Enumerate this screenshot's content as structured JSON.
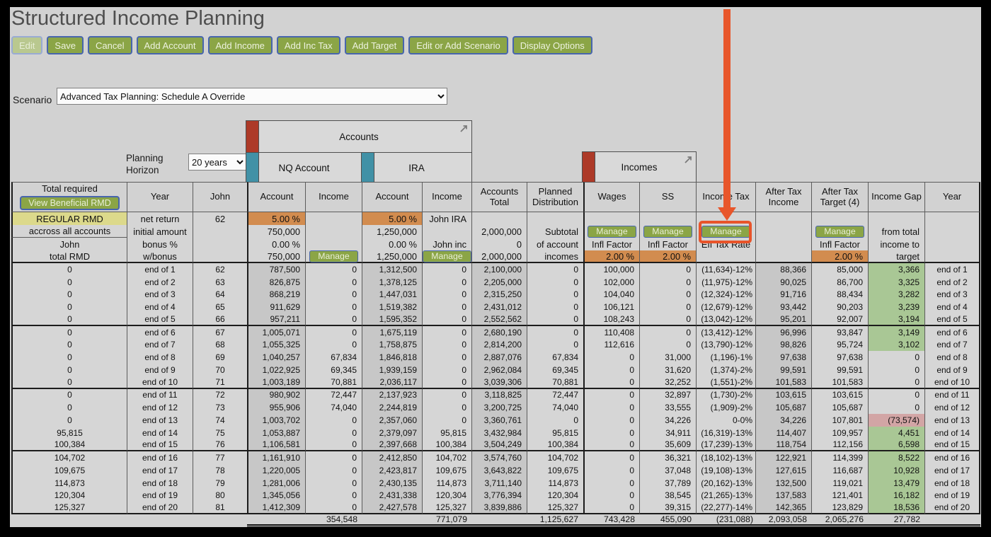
{
  "title": "Structured Income Planning",
  "toolbar": {
    "buttons": [
      "Edit",
      "Save",
      "Cancel",
      "Add Account",
      "Add Income",
      "Add Inc Tax",
      "Add Target",
      "Edit or Add Scenario",
      "Display Options"
    ]
  },
  "scenario": {
    "label": "Scenario",
    "value": "Advanced Tax Planning: Schedule A Override"
  },
  "planning_horizon": {
    "label": "Planning Horizon",
    "value": "20 years"
  },
  "panels": {
    "accounts": {
      "title": "Accounts",
      "subaccounts": [
        "NQ Account",
        "IRA"
      ]
    },
    "incomes": {
      "title": "Incomes"
    }
  },
  "table": {
    "corner": {
      "title": "Total required",
      "button_label": "View Beneficial RMD"
    },
    "columns": [
      "Total required",
      "Year",
      "John",
      "Account",
      "Income",
      "Account",
      "Income",
      "Accounts Total",
      "Planned Distribution",
      "Wages",
      "SS",
      "Income Tax",
      "After Tax Income",
      "After Tax Target (4)",
      "Income Gap",
      "Year"
    ],
    "subheader_rows": [
      [
        "REGULAR RMD",
        "net return",
        "62",
        "5.00 %",
        "",
        "5.00 %",
        "John IRA",
        "",
        "",
        "",
        "",
        "",
        "",
        "",
        "",
        ""
      ],
      [
        "accross all accounts",
        "initial amount",
        "",
        "750,000",
        "",
        "1,250,000",
        "",
        "2,000,000",
        "Subtotal",
        "Manage",
        "Manage",
        "Manage",
        "",
        "Manage",
        "from total",
        ""
      ],
      [
        "John",
        "bonus %",
        "",
        "0.00 %",
        "",
        "0.00 %",
        "John inc",
        "0",
        "of account",
        "Infl Factor",
        "Infl Factor",
        "Eff Tax Rate",
        "",
        "Infl Factor",
        "income to",
        ""
      ],
      [
        "total RMD",
        "w/bonus",
        "",
        "750,000",
        "Manage",
        "1,250,000",
        "Manage",
        "2,000,000",
        "incomes",
        "2.00 %",
        "2.00 %",
        "",
        "",
        "2.00 %",
        "target",
        ""
      ]
    ],
    "rows": [
      [
        "0",
        "end of 1",
        "62",
        "787,500",
        "0",
        "1,312,500",
        "0",
        "2,100,000",
        "0",
        "100,000",
        "0",
        "(11,634)-12%",
        "88,366",
        "85,000",
        "3,366",
        "end of 1"
      ],
      [
        "0",
        "end of 2",
        "63",
        "826,875",
        "0",
        "1,378,125",
        "0",
        "2,205,000",
        "0",
        "102,000",
        "0",
        "(11,975)-12%",
        "90,025",
        "86,700",
        "3,325",
        "end of 2"
      ],
      [
        "0",
        "end of 3",
        "64",
        "868,219",
        "0",
        "1,447,031",
        "0",
        "2,315,250",
        "0",
        "104,040",
        "0",
        "(12,324)-12%",
        "91,716",
        "88,434",
        "3,282",
        "end of 3"
      ],
      [
        "0",
        "end of 4",
        "65",
        "911,629",
        "0",
        "1,519,382",
        "0",
        "2,431,012",
        "0",
        "106,121",
        "0",
        "(12,679)-12%",
        "93,442",
        "90,203",
        "3,239",
        "end of 4"
      ],
      [
        "0",
        "end of 5",
        "66",
        "957,211",
        "0",
        "1,595,352",
        "0",
        "2,552,562",
        "0",
        "108,243",
        "0",
        "(13,042)-12%",
        "95,201",
        "92,007",
        "3,194",
        "end of 5"
      ],
      [
        "0",
        "end of 6",
        "67",
        "1,005,071",
        "0",
        "1,675,119",
        "0",
        "2,680,190",
        "0",
        "110,408",
        "0",
        "(13,412)-12%",
        "96,996",
        "93,847",
        "3,149",
        "end of 6"
      ],
      [
        "0",
        "end of 7",
        "68",
        "1,055,325",
        "0",
        "1,758,875",
        "0",
        "2,814,200",
        "0",
        "112,616",
        "0",
        "(13,790)-12%",
        "98,826",
        "95,724",
        "3,102",
        "end of 7"
      ],
      [
        "0",
        "end of 8",
        "69",
        "1,040,257",
        "67,834",
        "1,846,818",
        "0",
        "2,887,076",
        "67,834",
        "0",
        "31,000",
        "(1,196)-1%",
        "97,638",
        "97,638",
        "0",
        "end of 8"
      ],
      [
        "0",
        "end of 9",
        "70",
        "1,022,925",
        "69,345",
        "1,939,159",
        "0",
        "2,962,084",
        "69,345",
        "0",
        "31,620",
        "(1,374)-2%",
        "99,591",
        "99,591",
        "0",
        "end of 9"
      ],
      [
        "0",
        "end of 10",
        "71",
        "1,003,189",
        "70,881",
        "2,036,117",
        "0",
        "3,039,306",
        "70,881",
        "0",
        "32,252",
        "(1,551)-2%",
        "101,583",
        "101,583",
        "0",
        "end of 10"
      ],
      [
        "0",
        "end of 11",
        "72",
        "980,902",
        "72,447",
        "2,137,923",
        "0",
        "3,118,825",
        "72,447",
        "0",
        "32,897",
        "(1,730)-2%",
        "103,615",
        "103,615",
        "0",
        "end of 11"
      ],
      [
        "0",
        "end of 12",
        "73",
        "955,906",
        "74,040",
        "2,244,819",
        "0",
        "3,200,725",
        "74,040",
        "0",
        "33,555",
        "(1,909)-2%",
        "105,687",
        "105,687",
        "0",
        "end of 12"
      ],
      [
        "0",
        "end of 13",
        "74",
        "1,003,702",
        "0",
        "2,357,060",
        "0",
        "3,360,761",
        "0",
        "0",
        "34,226",
        "0-0%",
        "34,226",
        "107,801",
        "(73,574)",
        "end of 13"
      ],
      [
        "95,815",
        "end of 14",
        "75",
        "1,053,887",
        "0",
        "2,379,097",
        "95,815",
        "3,432,984",
        "95,815",
        "0",
        "34,911",
        "(16,319)-13%",
        "114,407",
        "109,957",
        "4,451",
        "end of 14"
      ],
      [
        "100,384",
        "end of 15",
        "76",
        "1,106,581",
        "0",
        "2,397,668",
        "100,384",
        "3,504,249",
        "100,384",
        "0",
        "35,609",
        "(17,239)-13%",
        "118,754",
        "112,156",
        "6,598",
        "end of 15"
      ],
      [
        "104,702",
        "end of 16",
        "77",
        "1,161,910",
        "0",
        "2,412,850",
        "104,702",
        "3,574,760",
        "104,702",
        "0",
        "36,321",
        "(18,102)-13%",
        "122,921",
        "114,399",
        "8,522",
        "end of 16"
      ],
      [
        "109,675",
        "end of 17",
        "78",
        "1,220,005",
        "0",
        "2,423,817",
        "109,675",
        "3,643,822",
        "109,675",
        "0",
        "37,048",
        "(19,108)-13%",
        "127,615",
        "116,687",
        "10,928",
        "end of 17"
      ],
      [
        "114,873",
        "end of 18",
        "79",
        "1,281,006",
        "0",
        "2,430,135",
        "114,873",
        "3,711,140",
        "114,873",
        "0",
        "37,789",
        "(20,162)-13%",
        "132,500",
        "119,021",
        "13,479",
        "end of 18"
      ],
      [
        "120,304",
        "end of 19",
        "80",
        "1,345,056",
        "0",
        "2,431,338",
        "120,304",
        "3,776,394",
        "120,304",
        "0",
        "38,545",
        "(21,265)-13%",
        "137,583",
        "121,401",
        "16,182",
        "end of 19"
      ],
      [
        "125,327",
        "end of 20",
        "81",
        "1,412,309",
        "0",
        "2,427,578",
        "125,327",
        "3,839,886",
        "125,327",
        "0",
        "39,315",
        "(22,277)-14%",
        "142,365",
        "123,829",
        "18,536",
        "end of 20"
      ]
    ],
    "totals": [
      "",
      "",
      "",
      "",
      "354,548",
      "",
      "771,079",
      "",
      "1,125,627",
      "743,428",
      "455,090",
      "(231,088)",
      "2,093,058",
      "2,065,276",
      "27,782",
      ""
    ]
  },
  "colors": {
    "button_green": "#8ba546",
    "button_border_blue": "#4765ae",
    "button_disabled_green": "#b9c88f",
    "cell_orange": "#d28c4f",
    "rmd_yellow": "#dcd98b",
    "gap_green": "#a9c795",
    "gap_red": "#d2a5a5",
    "group_bar_red": "#ad3a28",
    "group_bar_teal": "#4191a6",
    "callout_orange": "#e8562b"
  }
}
